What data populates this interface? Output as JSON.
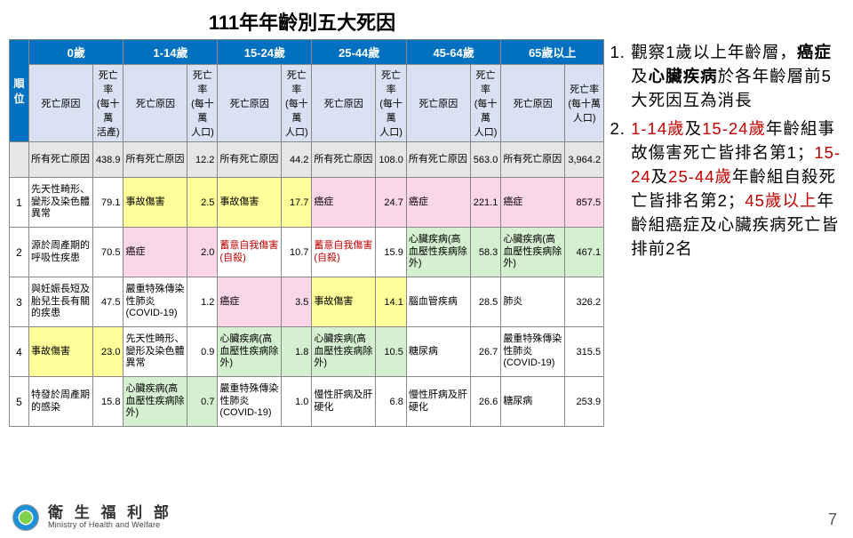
{
  "title": "111年年齡別五大死因",
  "page_number": "7",
  "footer": {
    "cn": "衛 生 福 利 部",
    "en": "Ministry of Health and Welfare"
  },
  "rank_header": "順位",
  "age_groups": [
    "0歲",
    "1-14歲",
    "15-24歲",
    "25-44歲",
    "45-64歲",
    "65歲以上"
  ],
  "sub_headers": {
    "cause": "死亡原因",
    "rate_first": "死亡率\n(每十萬\n活產)",
    "rate_other": "死亡率\n(每十萬\n人口)"
  },
  "all_row_label": "所有死亡原因",
  "all_row_rates": [
    "438.9",
    "12.2",
    "44.2",
    "108.0",
    "563.0",
    "3,964.2"
  ],
  "ranks": [
    "1",
    "2",
    "3",
    "4",
    "5"
  ],
  "colors": {
    "yellow": "#ffff99",
    "pink": "#fbd5e8",
    "green": "#d5f0d0",
    "gray": "#e7e6e6",
    "none": "#ffffff"
  },
  "table": [
    [
      {
        "c": "先天性畸形、變形及染色體異常",
        "r": "79.1",
        "bg": "none"
      },
      {
        "c": "事故傷害",
        "r": "2.5",
        "bg": "yellow"
      },
      {
        "c": "事故傷害",
        "r": "17.7",
        "bg": "yellow"
      },
      {
        "c": "癌症",
        "r": "24.7",
        "bg": "pink"
      },
      {
        "c": "癌症",
        "r": "221.1",
        "bg": "pink"
      },
      {
        "c": "癌症",
        "r": "857.5",
        "bg": "pink"
      }
    ],
    [
      {
        "c": "源於周產期的呼吸性疾患",
        "r": "70.5",
        "bg": "none"
      },
      {
        "c": "癌症",
        "r": "2.0",
        "bg": "pink"
      },
      {
        "c": "蓄意自我傷害(自殺)",
        "r": "10.7",
        "bg": "none",
        "red": true
      },
      {
        "c": "蓄意自我傷害(自殺)",
        "r": "15.9",
        "bg": "none",
        "red": true
      },
      {
        "c": "心臟疾病(高血壓性疾病除外)",
        "r": "58.3",
        "bg": "green"
      },
      {
        "c": "心臟疾病(高血壓性疾病除外)",
        "r": "467.1",
        "bg": "green"
      }
    ],
    [
      {
        "c": "與妊娠長短及胎兒生長有關的疾患",
        "r": "47.5",
        "bg": "none"
      },
      {
        "c": "嚴重特殊傳染性肺炎(COVID-19)",
        "r": "1.2",
        "bg": "none"
      },
      {
        "c": "癌症",
        "r": "3.5",
        "bg": "pink"
      },
      {
        "c": "事故傷害",
        "r": "14.1",
        "bg": "yellow"
      },
      {
        "c": "腦血管疾病",
        "r": "28.5",
        "bg": "none"
      },
      {
        "c": "肺炎",
        "r": "326.2",
        "bg": "none"
      }
    ],
    [
      {
        "c": "事故傷害",
        "r": "23.0",
        "bg": "yellow"
      },
      {
        "c": "先天性畸形、變形及染色體異常",
        "r": "0.9",
        "bg": "none"
      },
      {
        "c": "心臟疾病(高血壓性疾病除外)",
        "r": "1.8",
        "bg": "green"
      },
      {
        "c": "心臟疾病(高血壓性疾病除外)",
        "r": "10.5",
        "bg": "green"
      },
      {
        "c": "糖尿病",
        "r": "26.7",
        "bg": "none"
      },
      {
        "c": "嚴重特殊傳染性肺炎(COVID-19)",
        "r": "315.5",
        "bg": "none"
      }
    ],
    [
      {
        "c": "特發於周產期的感染",
        "r": "15.8",
        "bg": "none"
      },
      {
        "c": "心臟疾病(高血壓性疾病除外)",
        "r": "0.7",
        "bg": "green"
      },
      {
        "c": "嚴重特殊傳染性肺炎(COVID-19)",
        "r": "1.0",
        "bg": "none"
      },
      {
        "c": "慢性肝病及肝硬化",
        "r": "6.8",
        "bg": "none"
      },
      {
        "c": "慢性肝病及肝硬化",
        "r": "26.6",
        "bg": "none"
      },
      {
        "c": "糖尿病",
        "r": "253.9",
        "bg": "none"
      }
    ]
  ],
  "notes": [
    {
      "type": "plain",
      "parts": [
        {
          "t": "觀察1歲以上年齡層，"
        },
        {
          "t": "癌症",
          "b": true
        },
        {
          "t": "及"
        },
        {
          "t": "心臟疾病",
          "b": true
        },
        {
          "t": "於各年齡層前5大死因互為消長"
        }
      ]
    },
    {
      "type": "red-lead",
      "parts": [
        {
          "t": "1-14歲",
          "hl": true
        },
        {
          "t": "及"
        },
        {
          "t": "15-24歲",
          "hl": true
        },
        {
          "t": "年齡組事故傷害死亡皆排名第1；"
        },
        {
          "t": "15-24",
          "hl": true
        },
        {
          "t": "及"
        },
        {
          "t": "25-44歲",
          "hl": true
        },
        {
          "t": "年齡組自殺死亡皆排名第2；"
        },
        {
          "t": "45歲以上",
          "hl": true
        },
        {
          "t": "年齡組癌症及心臟疾病死亡皆排前2名"
        }
      ]
    }
  ]
}
